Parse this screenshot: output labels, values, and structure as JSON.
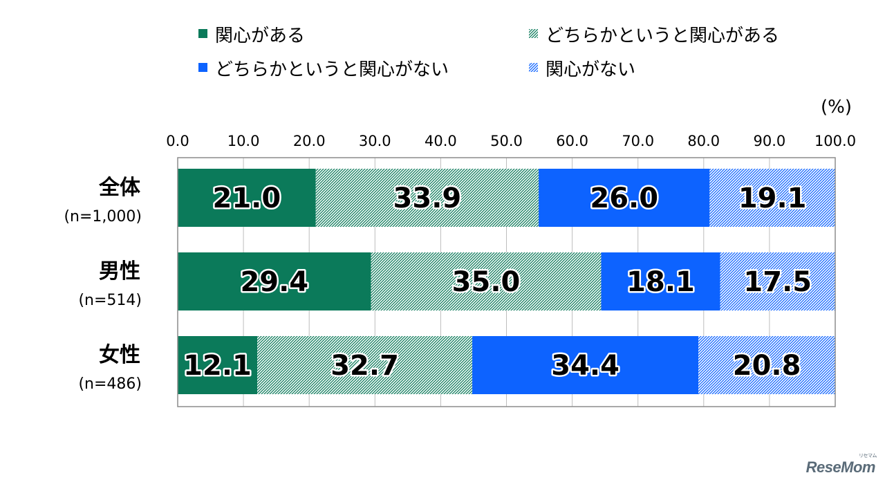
{
  "chart_data": {
    "type": "bar",
    "orientation": "horizontal",
    "stacked": true,
    "unit": "(%)",
    "xlim": [
      0,
      100
    ],
    "xticks": [
      "0.0",
      "10.0",
      "20.0",
      "30.0",
      "40.0",
      "50.0",
      "60.0",
      "70.0",
      "80.0",
      "90.0",
      "100.0"
    ],
    "grid": true,
    "legend_position": "top",
    "categories": [
      {
        "label": "全体",
        "n": "(n=1,000)"
      },
      {
        "label": "男性",
        "n": "(n=514)"
      },
      {
        "label": "女性",
        "n": "(n=486)"
      }
    ],
    "series": [
      {
        "name": "関心がある",
        "values": [
          21.0,
          29.4,
          12.1
        ],
        "color": "#0b7a5a",
        "pattern": "solid"
      },
      {
        "name": "どちらかというと関心がある",
        "values": [
          33.9,
          35.0,
          32.7
        ],
        "color": "#0b7a5a",
        "pattern": "hatch"
      },
      {
        "name": "どちらかというと関心がない",
        "values": [
          26.0,
          18.1,
          34.4
        ],
        "color": "#0d63ff",
        "pattern": "solid"
      },
      {
        "name": "関心がない",
        "values": [
          19.1,
          17.5,
          20.8
        ],
        "color": "#0d63ff",
        "pattern": "hatch"
      }
    ]
  },
  "watermark": {
    "text": "ReseMom",
    "small": "リセマム"
  }
}
